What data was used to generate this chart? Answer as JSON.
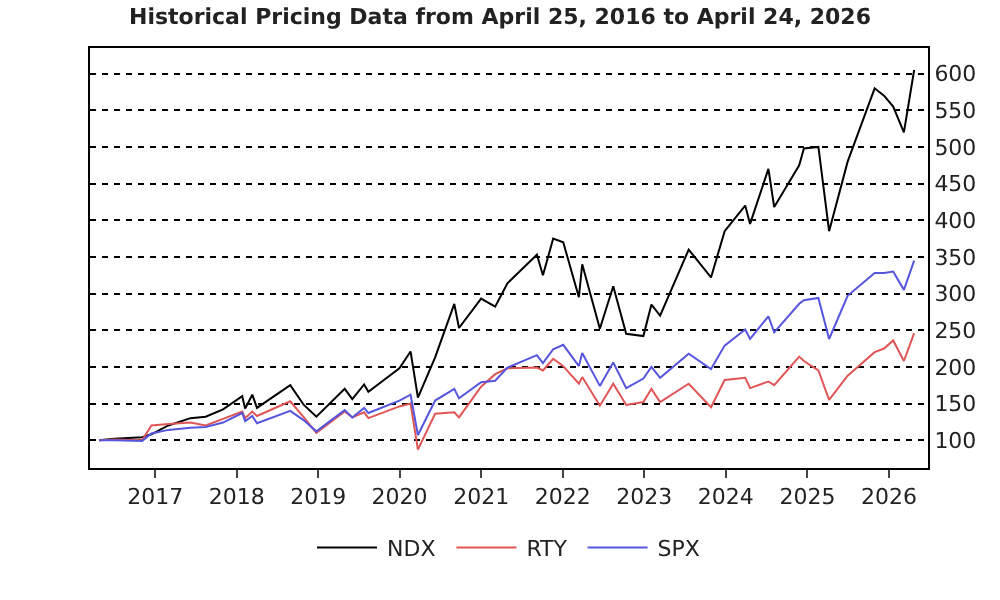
{
  "chart_data": {
    "type": "line",
    "title": "Historical Pricing Data from April 25, 2016 to April 24, 2026",
    "x": [
      "2016-04-25",
      "2016-07-01",
      "2016-11-04",
      "2016-12-15",
      "2017-03-01",
      "2017-06-08",
      "2017-08-15",
      "2017-11-01",
      "2018-01-26",
      "2018-02-08",
      "2018-03-12",
      "2018-04-02",
      "2018-08-29",
      "2018-10-29",
      "2018-12-24",
      "2019-04-30",
      "2019-06-03",
      "2019-07-26",
      "2019-08-14",
      "2019-12-31",
      "2020-02-19",
      "2020-03-23",
      "2020-06-08",
      "2020-09-02",
      "2020-09-23",
      "2020-12-31",
      "2021-03-04",
      "2021-04-28",
      "2021-09-07",
      "2021-10-04",
      "2021-11-19",
      "2022-01-03",
      "2022-03-14",
      "2022-03-29",
      "2022-06-16",
      "2022-08-15",
      "2022-10-12",
      "2022-12-28",
      "2023-02-02",
      "2023-03-13",
      "2023-07-19",
      "2023-10-27",
      "2023-12-27",
      "2024-03-28",
      "2024-04-19",
      "2024-07-10",
      "2024-08-05",
      "2024-11-25",
      "2024-12-16",
      "2025-02-19",
      "2025-04-08",
      "2025-06-30",
      "2025-10-29",
      "2025-12-10",
      "2026-01-20",
      "2026-03-09",
      "2026-04-24"
    ],
    "series": [
      {
        "name": "NDX",
        "color": "#000000",
        "values": [
          100,
          102,
          104,
          108,
          120,
          130,
          132,
          142,
          160,
          143,
          162,
          144,
          175,
          148,
          132,
          170,
          156,
          176,
          166,
          198,
          221,
          158,
          213,
          286,
          253,
          293,
          282,
          314,
          353,
          325,
          375,
          370,
          295,
          340,
          252,
          310,
          245,
          242,
          285,
          270,
          360,
          322,
          385,
          420,
          395,
          470,
          418,
          475,
          498,
          500,
          385,
          480,
          580,
          570,
          555,
          520,
          605
        ]
      },
      {
        "name": "RTY",
        "color": "#e05555",
        "values": [
          100,
          101,
          100,
          120,
          122,
          124,
          120,
          129,
          139,
          130,
          139,
          133,
          153,
          131,
          110,
          139,
          131,
          138,
          130,
          146,
          150,
          87,
          136,
          138,
          131,
          173,
          190,
          198,
          199,
          195,
          211,
          201,
          177,
          186,
          147,
          177,
          148,
          152,
          170,
          152,
          177,
          145,
          182,
          185,
          171,
          180,
          175,
          214,
          208,
          195,
          155,
          188,
          220,
          225,
          236,
          208,
          246
        ]
      },
      {
        "name": "SPX",
        "color": "#5555dd",
        "values": [
          100,
          100,
          99,
          109,
          114,
          117,
          118,
          124,
          137,
          126,
          133,
          123,
          140,
          127,
          112,
          141,
          131,
          144,
          137,
          154,
          162,
          107,
          154,
          170,
          157,
          179,
          181,
          199,
          216,
          205,
          224,
          230,
          201,
          219,
          174,
          206,
          171,
          184,
          200,
          185,
          218,
          197,
          229,
          251,
          238,
          269,
          247,
          286,
          291,
          294,
          238,
          297,
          328,
          328,
          330,
          305,
          345
        ]
      }
    ],
    "xlim": [
      "2016-03-15",
      "2026-06-25"
    ],
    "xticks": [
      {
        "value": "2017-01-01",
        "label": "2017"
      },
      {
        "value": "2018-01-01",
        "label": "2018"
      },
      {
        "value": "2019-01-01",
        "label": "2019"
      },
      {
        "value": "2020-01-01",
        "label": "2020"
      },
      {
        "value": "2021-01-01",
        "label": "2021"
      },
      {
        "value": "2022-01-01",
        "label": "2022"
      },
      {
        "value": "2023-01-01",
        "label": "2023"
      },
      {
        "value": "2024-01-01",
        "label": "2024"
      },
      {
        "value": "2025-01-01",
        "label": "2025"
      },
      {
        "value": "2026-01-01",
        "label": "2026"
      }
    ],
    "ylim": [
      62,
      635
    ],
    "yticks": [
      100,
      150,
      200,
      250,
      300,
      350,
      400,
      450,
      500,
      550,
      600
    ],
    "grid": "y",
    "legend": "bottom",
    "marker": "none",
    "line_style": "solid"
  }
}
